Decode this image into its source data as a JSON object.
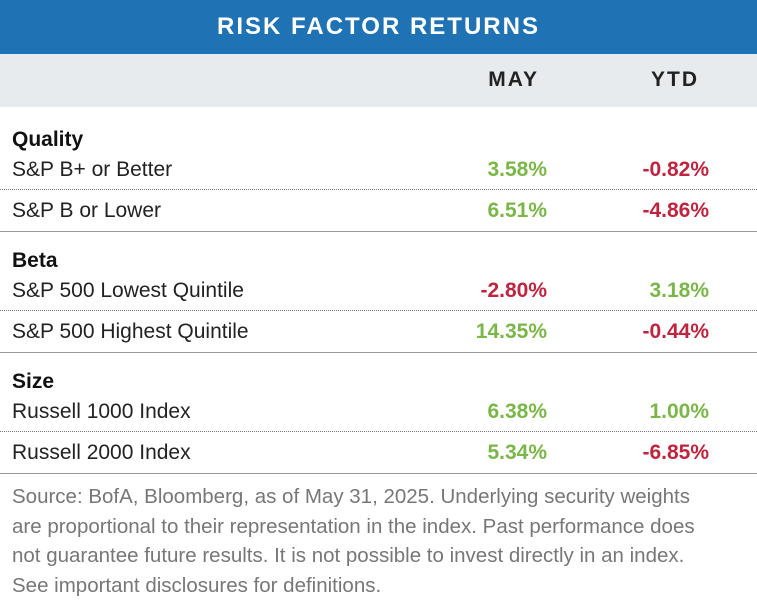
{
  "title": "RISK FACTOR RETURNS",
  "columns": {
    "may": "MAY",
    "ytd": "YTD"
  },
  "colors": {
    "header": "#1f72b3",
    "subheader": "#e8ebee",
    "positive": "#7ab648",
    "negative": "#c0243e"
  },
  "chart_data": {
    "type": "table",
    "title": "RISK FACTOR RETURNS",
    "columns": [
      "MAY",
      "YTD"
    ],
    "groups": [
      {
        "name": "Quality",
        "rows": [
          {
            "label": "S&P B+ or Better",
            "may": "3.58%",
            "ytd": "-0.82%"
          },
          {
            "label": "S&P B or Lower",
            "may": "6.51%",
            "ytd": "-4.86%"
          }
        ]
      },
      {
        "name": "Beta",
        "rows": [
          {
            "label": "S&P 500 Lowest Quintile",
            "may": "-2.80%",
            "ytd": "3.18%"
          },
          {
            "label": "S&P 500 Highest Quintile",
            "may": "14.35%",
            "ytd": "-0.44%"
          }
        ]
      },
      {
        "name": "Size",
        "rows": [
          {
            "label": "Russell 1000 Index",
            "may": "6.38%",
            "ytd": "1.00%"
          },
          {
            "label": "Russell 2000 Index",
            "may": "5.34%",
            "ytd": "-6.85%"
          }
        ]
      }
    ]
  },
  "source": "Source: BofA, Bloomberg, as of May 31, 2025. Underlying security weights are proportional to their representation in the index. Past performance does not guarantee future results. It is not possible to invest directly in an index. See important disclosures for definitions."
}
